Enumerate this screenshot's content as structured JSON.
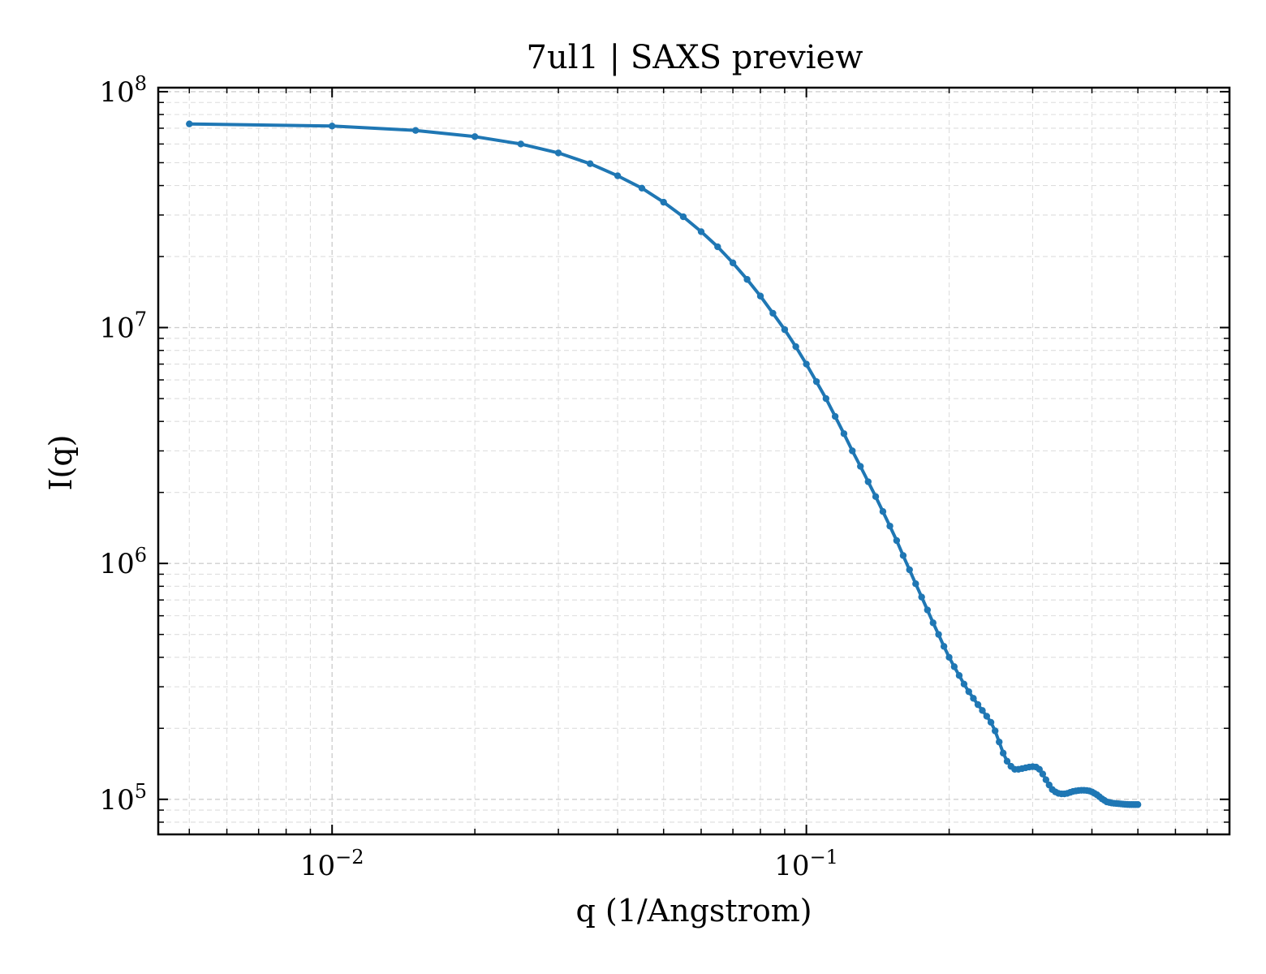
{
  "chart_data": {
    "type": "line",
    "title": "7ul1 | SAXS preview",
    "xlabel": "q (1/Angstrom)",
    "ylabel": "I(q)",
    "xscale": "log",
    "yscale": "log",
    "xlim": [
      0.0043,
      0.78
    ],
    "ylim": [
      71000,
      104000000
    ],
    "grid": true,
    "legend": "none",
    "color": "#1f77b4",
    "x_tick_labels": [
      {
        "base": "10",
        "exp": "−2",
        "value": 0.01
      },
      {
        "base": "10",
        "exp": "−1",
        "value": 0.1
      }
    ],
    "y_tick_labels": [
      {
        "base": "10",
        "exp": "5",
        "value": 100000
      },
      {
        "base": "10",
        "exp": "6",
        "value": 1000000
      },
      {
        "base": "10",
        "exp": "7",
        "value": 10000000
      },
      {
        "base": "10",
        "exp": "8",
        "value": 100000000
      }
    ],
    "series": [
      {
        "x": [
          0.005,
          0.01,
          0.015,
          0.02,
          0.025,
          0.03,
          0.035,
          0.04,
          0.045,
          0.05,
          0.055,
          0.06,
          0.065,
          0.07,
          0.075,
          0.08,
          0.085,
          0.09,
          0.095,
          0.1,
          0.105,
          0.11,
          0.115,
          0.12,
          0.125,
          0.13,
          0.135,
          0.14,
          0.145,
          0.15,
          0.155,
          0.16,
          0.165,
          0.17,
          0.175,
          0.18,
          0.185,
          0.19,
          0.195,
          0.2,
          0.205,
          0.21,
          0.215,
          0.22,
          0.225,
          0.23,
          0.235,
          0.24,
          0.245,
          0.25,
          0.255,
          0.26,
          0.265,
          0.27,
          0.275,
          0.28,
          0.285,
          0.29,
          0.295,
          0.3,
          0.305,
          0.31,
          0.315,
          0.32,
          0.325,
          0.33,
          0.335,
          0.34,
          0.345,
          0.35,
          0.355,
          0.36,
          0.365,
          0.37,
          0.375,
          0.38,
          0.385,
          0.39,
          0.395,
          0.4,
          0.405,
          0.41,
          0.415,
          0.42,
          0.425,
          0.43,
          0.435,
          0.44,
          0.445,
          0.45,
          0.455,
          0.46,
          0.465,
          0.47,
          0.475,
          0.48,
          0.485,
          0.49,
          0.495,
          0.5
        ],
        "y": [
          73000000,
          71500000,
          68500000,
          64500000,
          60000000,
          55000000,
          49500000,
          44000000,
          39000000,
          34000000,
          29500000,
          25500000,
          22000000,
          18800000,
          16000000,
          13600000,
          11500000,
          9800000,
          8300000,
          7000000,
          5900000,
          5000000,
          4200000,
          3550000,
          3000000,
          2580000,
          2220000,
          1920000,
          1660000,
          1440000,
          1250000,
          1080000,
          940000,
          820000,
          720000,
          635000,
          560000,
          500000,
          445000,
          400000,
          365000,
          335000,
          308000,
          286000,
          268000,
          252000,
          238000,
          225000,
          212000,
          195000,
          175000,
          157000,
          145000,
          138000,
          134000,
          134000,
          135000,
          136000,
          137000,
          137500,
          137000,
          134000,
          128000,
          121000,
          115000,
          110000,
          107500,
          106000,
          105500,
          105500,
          106000,
          107000,
          108000,
          108500,
          109000,
          109200,
          109200,
          109000,
          108500,
          107500,
          106000,
          104500,
          102500,
          100500,
          99000,
          97500,
          97000,
          96500,
          96200,
          96000,
          95800,
          95600,
          95400,
          95200,
          95100,
          95000,
          95000,
          95000,
          95000,
          95000
        ]
      }
    ]
  }
}
